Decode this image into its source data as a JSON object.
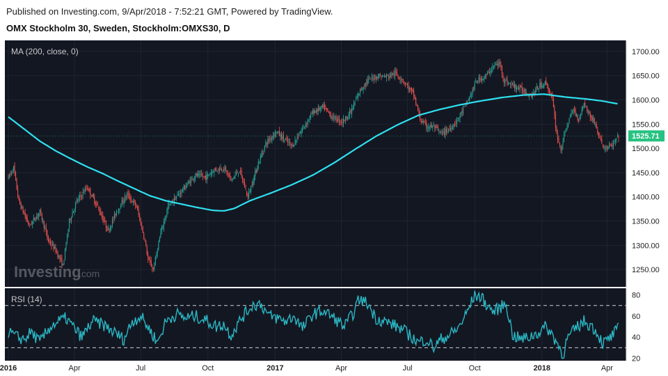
{
  "header": {
    "published": "Published on Investing.com, 9/Apr/2018 - 7:52:21 GMT, Powered by TradingView.",
    "instrument": "OMX Stockholm 30, Sweden, Stockholm:OMXS30, D"
  },
  "watermark": {
    "brand": "Investing",
    "suffix": ".com"
  },
  "colors": {
    "background": "#131722",
    "up": "#26a69a",
    "down": "#ef5350",
    "ma": "#2fe0f0",
    "rsi": "#2bb7c4",
    "last_price_badge": "#26c281",
    "text": "#c8c8c8"
  },
  "chart_data": [
    {
      "type": "candlestick",
      "title": "OMX Stockholm 30, Sweden, Stockholm:OMXS30, D",
      "indicator_label": "MA (200, close, 0)",
      "y_ticks": [
        "1700.00",
        "1650.00",
        "1600.00",
        "1550.00",
        "1500.00",
        "1450.00",
        "1400.00",
        "1350.00",
        "1300.00",
        "1250.00"
      ],
      "y_tick_values": [
        1700,
        1650,
        1600,
        1550,
        1500,
        1450,
        1400,
        1350,
        1300,
        1250
      ],
      "ylim": [
        1220,
        1720
      ],
      "last_price": "1525.71",
      "last_price_value": 1525.71,
      "x_ticks": [
        "2016",
        "Apr",
        "Jul",
        "Oct",
        "2017",
        "Apr",
        "Jul",
        "Oct",
        "2018",
        "Apr"
      ],
      "x_tick_bold": [
        true,
        false,
        false,
        false,
        true,
        false,
        false,
        false,
        true,
        false
      ],
      "x_tick_index": [
        0,
        63,
        126,
        190,
        254,
        317,
        380,
        444,
        508,
        570
      ],
      "n_bars": 582,
      "price_path": [
        [
          0,
          1440
        ],
        [
          5,
          1460
        ],
        [
          10,
          1390
        ],
        [
          20,
          1340
        ],
        [
          30,
          1370
        ],
        [
          38,
          1310
        ],
        [
          45,
          1290
        ],
        [
          52,
          1258
        ],
        [
          58,
          1350
        ],
        [
          65,
          1390
        ],
        [
          75,
          1420
        ],
        [
          85,
          1380
        ],
        [
          95,
          1330
        ],
        [
          103,
          1370
        ],
        [
          113,
          1405
        ],
        [
          122,
          1380
        ],
        [
          130,
          1310
        ],
        [
          133,
          1270
        ],
        [
          138,
          1250
        ],
        [
          145,
          1325
        ],
        [
          152,
          1380
        ],
        [
          160,
          1400
        ],
        [
          168,
          1420
        ],
        [
          178,
          1445
        ],
        [
          188,
          1440
        ],
        [
          195,
          1455
        ],
        [
          205,
          1460
        ],
        [
          212,
          1435
        ],
        [
          220,
          1455
        ],
        [
          228,
          1400
        ],
        [
          238,
          1470
        ],
        [
          245,
          1510
        ],
        [
          255,
          1535
        ],
        [
          262,
          1520
        ],
        [
          270,
          1505
        ],
        [
          280,
          1540
        ],
        [
          290,
          1575
        ],
        [
          300,
          1585
        ],
        [
          308,
          1565
        ],
        [
          318,
          1555
        ],
        [
          326,
          1575
        ],
        [
          335,
          1620
        ],
        [
          342,
          1640
        ],
        [
          352,
          1650
        ],
        [
          360,
          1648
        ],
        [
          368,
          1655
        ],
        [
          376,
          1640
        ],
        [
          386,
          1610
        ],
        [
          392,
          1560
        ],
        [
          398,
          1545
        ],
        [
          405,
          1545
        ],
        [
          412,
          1530
        ],
        [
          420,
          1540
        ],
        [
          428,
          1560
        ],
        [
          438,
          1600
        ],
        [
          446,
          1640
        ],
        [
          455,
          1650
        ],
        [
          462,
          1670
        ],
        [
          468,
          1675
        ],
        [
          472,
          1640
        ],
        [
          480,
          1630
        ],
        [
          490,
          1620
        ],
        [
          498,
          1610
        ],
        [
          506,
          1630
        ],
        [
          512,
          1635
        ],
        [
          518,
          1600
        ],
        [
          522,
          1530
        ],
        [
          526,
          1498
        ],
        [
          532,
          1550
        ],
        [
          538,
          1580
        ],
        [
          543,
          1560
        ],
        [
          548,
          1595
        ],
        [
          553,
          1570
        ],
        [
          558,
          1555
        ],
        [
          563,
          1520
        ],
        [
          568,
          1500
        ],
        [
          575,
          1505
        ],
        [
          581,
          1525.71
        ]
      ],
      "ma_path": [
        [
          0,
          1565
        ],
        [
          15,
          1540
        ],
        [
          30,
          1515
        ],
        [
          45,
          1495
        ],
        [
          60,
          1478
        ],
        [
          75,
          1462
        ],
        [
          90,
          1448
        ],
        [
          105,
          1432
        ],
        [
          120,
          1417
        ],
        [
          135,
          1402
        ],
        [
          150,
          1392
        ],
        [
          165,
          1385
        ],
        [
          180,
          1378
        ],
        [
          195,
          1372
        ],
        [
          205,
          1371
        ],
        [
          215,
          1376
        ],
        [
          230,
          1392
        ],
        [
          250,
          1408
        ],
        [
          270,
          1425
        ],
        [
          290,
          1445
        ],
        [
          310,
          1470
        ],
        [
          330,
          1498
        ],
        [
          350,
          1525
        ],
        [
          370,
          1548
        ],
        [
          390,
          1568
        ],
        [
          410,
          1580
        ],
        [
          430,
          1590
        ],
        [
          450,
          1598
        ],
        [
          470,
          1605
        ],
        [
          490,
          1610
        ],
        [
          510,
          1612
        ],
        [
          530,
          1606
        ],
        [
          550,
          1602
        ],
        [
          565,
          1598
        ],
        [
          580,
          1592
        ]
      ]
    },
    {
      "type": "line",
      "title": "RSI (14)",
      "y_ticks": [
        "80",
        "60",
        "40",
        "20"
      ],
      "y_tick_values": [
        80,
        60,
        40,
        20
      ],
      "ylim": [
        19,
        85
      ],
      "bands": [
        70,
        30
      ],
      "rsi_path": [
        [
          0,
          45
        ],
        [
          8,
          40
        ],
        [
          15,
          38
        ],
        [
          22,
          45
        ],
        [
          30,
          35
        ],
        [
          40,
          50
        ],
        [
          48,
          55
        ],
        [
          55,
          58
        ],
        [
          63,
          48
        ],
        [
          70,
          40
        ],
        [
          80,
          55
        ],
        [
          90,
          52
        ],
        [
          100,
          45
        ],
        [
          110,
          38
        ],
        [
          118,
          55
        ],
        [
          126,
          60
        ],
        [
          134,
          48
        ],
        [
          142,
          35
        ],
        [
          150,
          55
        ],
        [
          160,
          62
        ],
        [
          168,
          58
        ],
        [
          178,
          60
        ],
        [
          190,
          55
        ],
        [
          198,
          50
        ],
        [
          205,
          52
        ],
        [
          212,
          42
        ],
        [
          222,
          58
        ],
        [
          232,
          70
        ],
        [
          240,
          72
        ],
        [
          248,
          60
        ],
        [
          256,
          58
        ],
        [
          264,
          55
        ],
        [
          272,
          60
        ],
        [
          280,
          48
        ],
        [
          290,
          62
        ],
        [
          300,
          65
        ],
        [
          310,
          58
        ],
        [
          320,
          50
        ],
        [
          328,
          62
        ],
        [
          334,
          76
        ],
        [
          342,
          72
        ],
        [
          350,
          58
        ],
        [
          358,
          55
        ],
        [
          366,
          52
        ],
        [
          374,
          48
        ],
        [
          382,
          42
        ],
        [
          390,
          35
        ],
        [
          398,
          38
        ],
        [
          405,
          30
        ],
        [
          412,
          38
        ],
        [
          420,
          42
        ],
        [
          428,
          48
        ],
        [
          436,
          62
        ],
        [
          444,
          80
        ],
        [
          450,
          78
        ],
        [
          456,
          70
        ],
        [
          462,
          64
        ],
        [
          468,
          68
        ],
        [
          474,
          72
        ],
        [
          480,
          42
        ],
        [
          488,
          38
        ],
        [
          496,
          40
        ],
        [
          504,
          44
        ],
        [
          512,
          50
        ],
        [
          518,
          42
        ],
        [
          524,
          32
        ],
        [
          528,
          22
        ],
        [
          532,
          38
        ],
        [
          540,
          48
        ],
        [
          548,
          55
        ],
        [
          556,
          50
        ],
        [
          562,
          42
        ],
        [
          566,
          34
        ],
        [
          572,
          38
        ],
        [
          578,
          45
        ],
        [
          581,
          48
        ]
      ]
    }
  ]
}
